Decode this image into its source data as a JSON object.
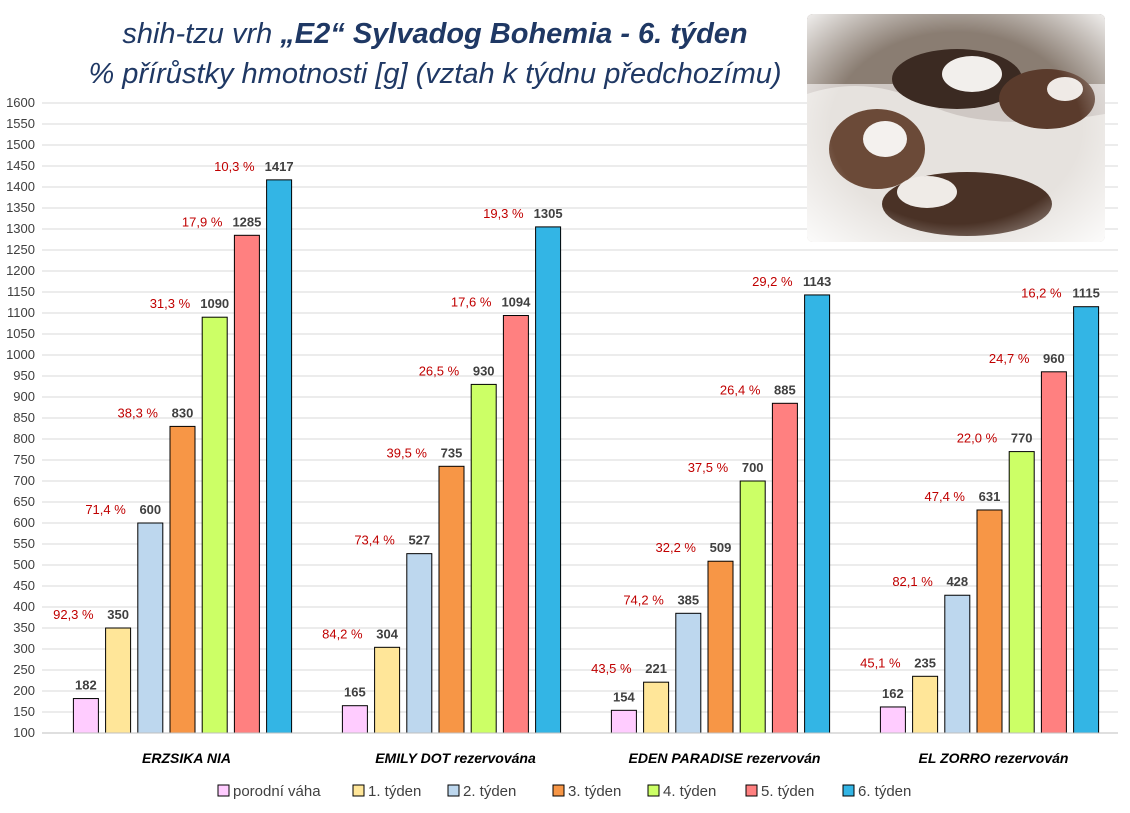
{
  "title": {
    "line1_prefix": "shih-tzu vrh ",
    "line1_bold": "„E2“ Sylvadog Bohemia - 6. týden",
    "line2": "% přírůstky hmotnosti [g] (vztah k týdnu předchozímu)"
  },
  "chart_data": {
    "type": "bar",
    "categories": [
      "ERZSIKA NIA",
      "EMILY DOT rezervována",
      "EDEN PARADISE rezervován",
      "EL ZORRO  rezervován"
    ],
    "series": [
      {
        "name": "porodní váha",
        "color": "#ffccff",
        "values": [
          182,
          165,
          154,
          162
        ],
        "pct": [
          "",
          "",
          "",
          ""
        ]
      },
      {
        "name": "1. týden",
        "color": "#ffe699",
        "values": [
          350,
          304,
          221,
          235
        ],
        "pct": [
          "92,3 %",
          "84,2 %",
          "43,5 %",
          "45,1 %"
        ]
      },
      {
        "name": "2. týden",
        "color": "#bdd7ee",
        "values": [
          600,
          527,
          385,
          428
        ],
        "pct": [
          "71,4 %",
          "73,4 %",
          "74,2 %",
          "82,1 %"
        ]
      },
      {
        "name": "3. týden",
        "color": "#f79646",
        "values": [
          830,
          735,
          509,
          631
        ],
        "pct": [
          "38,3 %",
          "39,5 %",
          "32,2 %",
          "47,4 %"
        ]
      },
      {
        "name": "4. týden",
        "color": "#ccff66",
        "values": [
          1090,
          930,
          700,
          770
        ],
        "pct": [
          "31,3 %",
          "26,5 %",
          "37,5 %",
          "22,0 %"
        ]
      },
      {
        "name": "5. týden",
        "color": "#ff8080",
        "values": [
          1285,
          1094,
          885,
          960
        ],
        "pct": [
          "17,9 %",
          "17,6 %",
          "26,4 %",
          "24,7 %"
        ]
      },
      {
        "name": "6. týden",
        "color": "#33b5e5",
        "values": [
          1417,
          1305,
          1143,
          1115
        ],
        "pct": [
          "10,3 %",
          "19,3 %",
          "29,2 %",
          "16,2 %"
        ]
      }
    ],
    "ylim": [
      100,
      1600
    ],
    "ytick_step": 50,
    "grid": true,
    "legend": "bottom",
    "label_color": "#c00000"
  },
  "photo": {
    "description_icon": "puppies-photo"
  }
}
